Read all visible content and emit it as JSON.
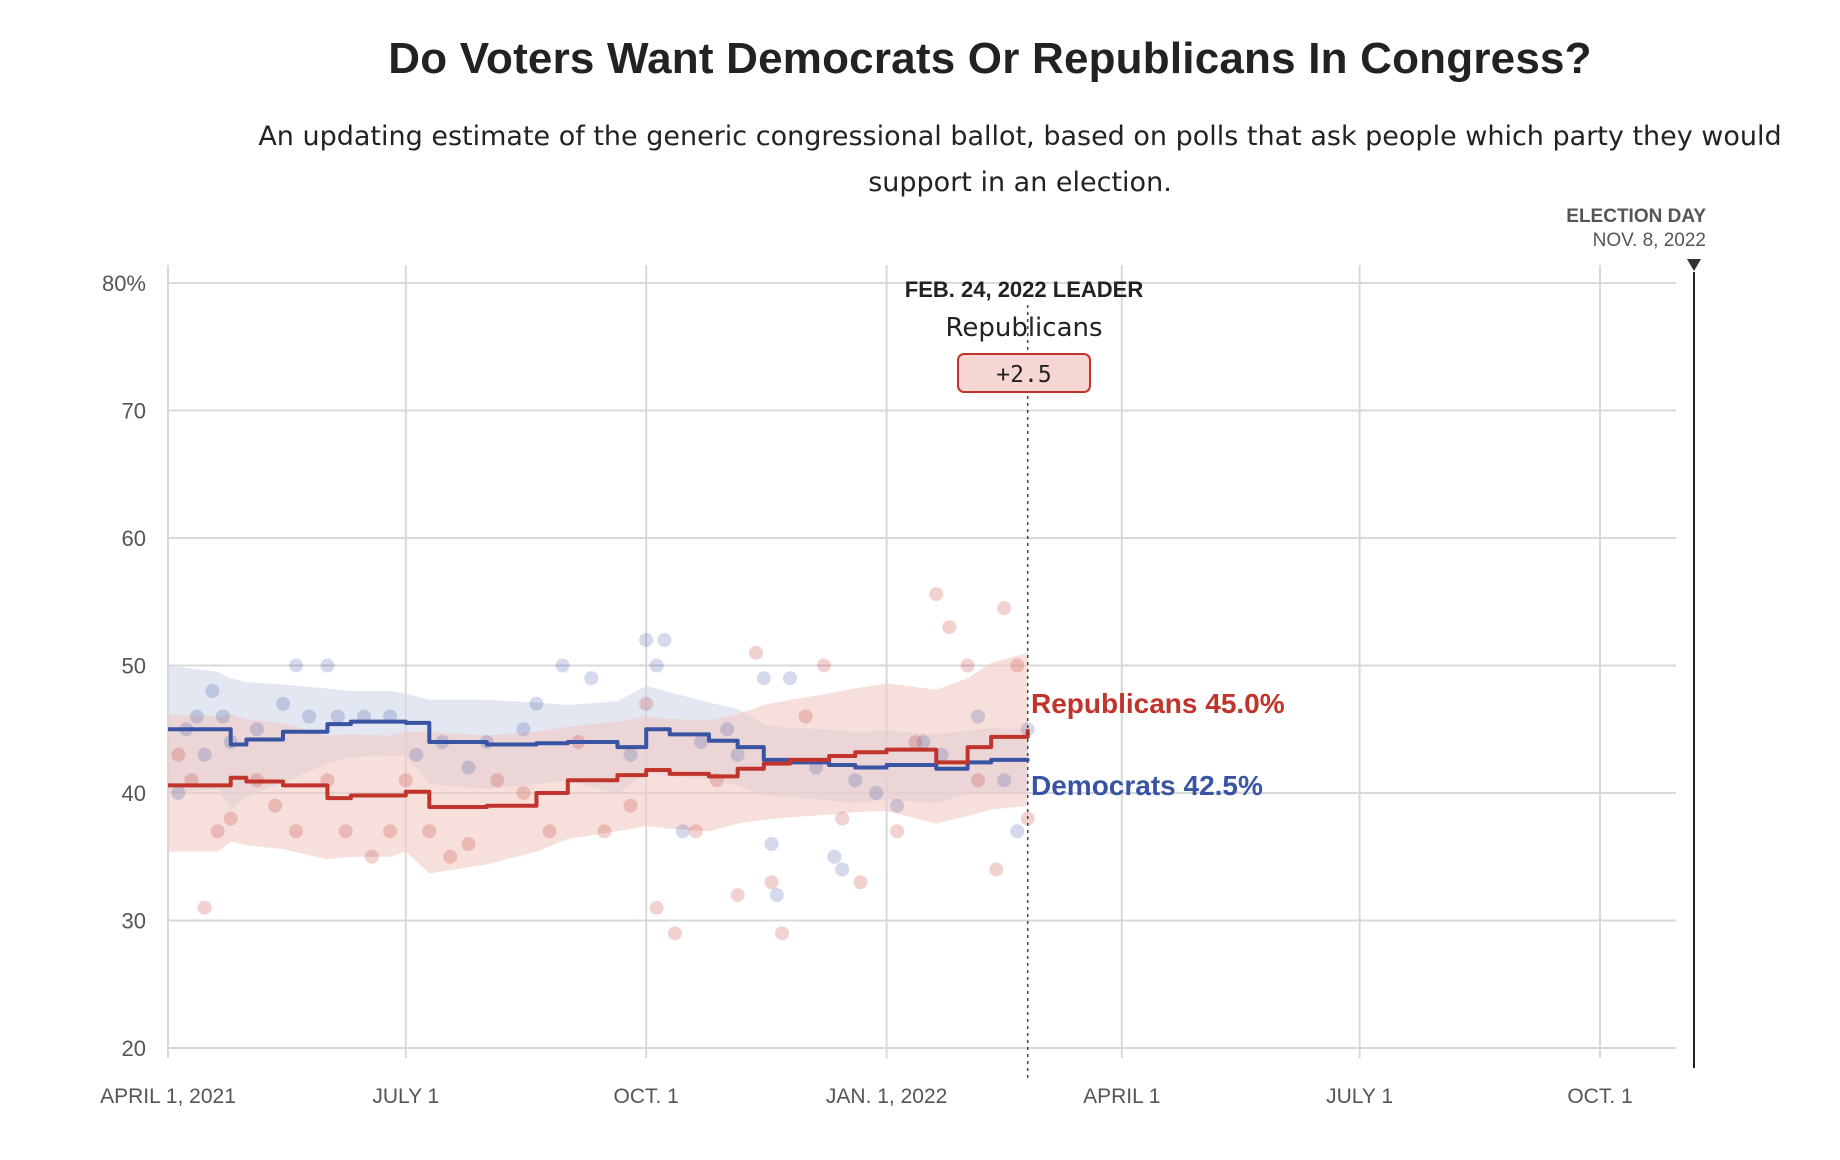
{
  "title": "Do Voters Want Democrats Or Republicans In Congress?",
  "subtitle": "An updating estimate of the generic congressional ballot, based on polls that ask people which party they would support in an election.",
  "annotation": {
    "title": "FEB. 24, 2022 LEADER",
    "party": "Republicans",
    "margin": "+2.5"
  },
  "election_day": {
    "title": "ELECTION DAY",
    "date": "NOV. 8, 2022"
  },
  "end_labels": {
    "republicans": "Republicans 45.0%",
    "democrats": "Democrats 42.5%"
  },
  "colors": {
    "republicans": "#c0342b",
    "democrats": "#3a54a4",
    "republicans_band": "#f2c9c4",
    "democrats_band": "#cfd7ea",
    "grid": "#d9d9d9"
  },
  "chart_data": {
    "type": "line",
    "x_axis": {
      "start": "2021-04-01",
      "end": "2022-11-08",
      "tick_labels": [
        "APRIL 1, 2021",
        "JULY 1",
        "OCT. 1",
        "JAN. 1, 2022",
        "APRIL 1",
        "JULY 1",
        "OCT. 1"
      ],
      "tick_dates": [
        "2021-04-01",
        "2021-07-01",
        "2021-10-01",
        "2022-01-01",
        "2022-04-01",
        "2022-07-01",
        "2022-10-01"
      ]
    },
    "y_axis": {
      "ylim": [
        20,
        80
      ],
      "ticks": [
        20,
        30,
        40,
        50,
        60,
        70,
        80
      ],
      "tick_labels": [
        "20",
        "30",
        "40",
        "50",
        "60",
        "70",
        "80%"
      ]
    },
    "grid": true,
    "series": [
      {
        "name": "Democrats",
        "key": "democrats",
        "x": [
          "2021-04-01",
          "2021-04-20",
          "2021-04-25",
          "2021-05-01",
          "2021-05-15",
          "2021-06-01",
          "2021-06-10",
          "2021-06-25",
          "2021-07-01",
          "2021-07-10",
          "2021-08-01",
          "2021-08-20",
          "2021-09-01",
          "2021-09-20",
          "2021-10-01",
          "2021-10-10",
          "2021-10-25",
          "2021-11-05",
          "2021-11-15",
          "2021-11-25",
          "2021-12-10",
          "2021-12-20",
          "2022-01-01",
          "2022-01-20",
          "2022-02-01",
          "2022-02-10",
          "2022-02-24"
        ],
        "values": [
          45.0,
          45.0,
          43.8,
          44.2,
          44.8,
          45.4,
          45.6,
          45.6,
          45.5,
          44.0,
          43.8,
          43.9,
          44.0,
          43.6,
          45.0,
          44.6,
          44.1,
          43.6,
          42.6,
          42.4,
          42.2,
          42.0,
          42.2,
          41.9,
          42.4,
          42.6,
          42.5
        ],
        "band_upper": [
          50.0,
          49.5,
          49.0,
          48.7,
          48.5,
          48.2,
          48.0,
          48.0,
          47.8,
          47.3,
          47.3,
          47.1,
          46.9,
          47.2,
          48.4,
          47.9,
          47.1,
          46.6,
          45.4,
          45.1,
          45.0,
          44.8,
          44.9,
          44.6,
          44.9,
          45.1,
          45.0
        ],
        "band_lower": [
          40.0,
          40.3,
          38.7,
          39.7,
          40.8,
          42.3,
          42.8,
          42.9,
          42.9,
          40.7,
          40.3,
          40.7,
          41.0,
          39.9,
          41.6,
          41.3,
          41.1,
          40.6,
          39.8,
          39.7,
          39.4,
          39.2,
          39.5,
          39.2,
          39.9,
          40.1,
          40.0
        ],
        "polls": [
          [
            "2021-04-05",
            40
          ],
          [
            "2021-04-08",
            45
          ],
          [
            "2021-04-12",
            46
          ],
          [
            "2021-04-15",
            43
          ],
          [
            "2021-04-18",
            48
          ],
          [
            "2021-04-22",
            46
          ],
          [
            "2021-04-25",
            44
          ],
          [
            "2021-05-05",
            45
          ],
          [
            "2021-05-15",
            47
          ],
          [
            "2021-05-20",
            50
          ],
          [
            "2021-05-25",
            46
          ],
          [
            "2021-06-01",
            50
          ],
          [
            "2021-06-05",
            46
          ],
          [
            "2021-06-15",
            46
          ],
          [
            "2021-06-25",
            46
          ],
          [
            "2021-07-05",
            43
          ],
          [
            "2021-07-15",
            44
          ],
          [
            "2021-07-25",
            42
          ],
          [
            "2021-08-01",
            44
          ],
          [
            "2021-08-15",
            45
          ],
          [
            "2021-08-20",
            47
          ],
          [
            "2021-08-30",
            50
          ],
          [
            "2021-09-10",
            49
          ],
          [
            "2021-09-25",
            43
          ],
          [
            "2021-10-01",
            52
          ],
          [
            "2021-10-05",
            50
          ],
          [
            "2021-10-08",
            52
          ],
          [
            "2021-10-15",
            37
          ],
          [
            "2021-10-22",
            44
          ],
          [
            "2021-11-01",
            45
          ],
          [
            "2021-11-05",
            43
          ],
          [
            "2021-11-15",
            49
          ],
          [
            "2021-11-18",
            36
          ],
          [
            "2021-11-20",
            32
          ],
          [
            "2021-11-25",
            49
          ],
          [
            "2021-12-05",
            42
          ],
          [
            "2021-12-12",
            35
          ],
          [
            "2021-12-15",
            34
          ],
          [
            "2021-12-20",
            41
          ],
          [
            "2021-12-28",
            40
          ],
          [
            "2022-01-05",
            39
          ],
          [
            "2022-01-15",
            44
          ],
          [
            "2022-01-22",
            43
          ],
          [
            "2022-02-05",
            46
          ],
          [
            "2022-02-15",
            41
          ],
          [
            "2022-02-20",
            37
          ],
          [
            "2022-02-24",
            45
          ]
        ]
      },
      {
        "name": "Republicans",
        "key": "republicans",
        "x": [
          "2021-04-01",
          "2021-04-20",
          "2021-04-25",
          "2021-05-01",
          "2021-05-15",
          "2021-06-01",
          "2021-06-10",
          "2021-06-25",
          "2021-07-01",
          "2021-07-10",
          "2021-08-01",
          "2021-08-20",
          "2021-09-01",
          "2021-09-20",
          "2021-10-01",
          "2021-10-10",
          "2021-10-25",
          "2021-11-05",
          "2021-11-15",
          "2021-11-25",
          "2021-12-10",
          "2021-12-20",
          "2022-01-01",
          "2022-01-20",
          "2022-02-01",
          "2022-02-10",
          "2022-02-24"
        ],
        "values": [
          40.6,
          40.6,
          41.2,
          40.9,
          40.6,
          39.6,
          39.8,
          39.8,
          40.1,
          38.9,
          39.0,
          40.0,
          41.0,
          41.4,
          41.8,
          41.5,
          41.3,
          41.9,
          42.3,
          42.6,
          42.9,
          43.2,
          43.4,
          42.4,
          43.6,
          44.4,
          45.0
        ],
        "band_upper": [
          46.2,
          46.0,
          46.2,
          45.8,
          45.5,
          44.5,
          44.6,
          44.5,
          44.8,
          44.8,
          44.5,
          44.8,
          45.2,
          45.6,
          46.0,
          45.8,
          45.7,
          46.2,
          46.9,
          47.3,
          47.8,
          48.2,
          48.6,
          48.1,
          49.0,
          50.2,
          51.0
        ],
        "band_lower": [
          35.4,
          35.4,
          36.2,
          35.9,
          35.6,
          34.8,
          35.0,
          35.0,
          35.4,
          33.7,
          34.4,
          35.4,
          36.4,
          37.0,
          37.4,
          37.2,
          37.0,
          37.6,
          37.9,
          38.1,
          38.3,
          38.5,
          38.6,
          37.6,
          38.2,
          38.7,
          39.0
        ],
        "polls": [
          [
            "2021-04-05",
            43
          ],
          [
            "2021-04-10",
            41
          ],
          [
            "2021-04-15",
            31
          ],
          [
            "2021-04-20",
            37
          ],
          [
            "2021-04-25",
            38
          ],
          [
            "2021-05-05",
            41
          ],
          [
            "2021-05-12",
            39
          ],
          [
            "2021-05-20",
            37
          ],
          [
            "2021-06-01",
            41
          ],
          [
            "2021-06-08",
            37
          ],
          [
            "2021-06-18",
            35
          ],
          [
            "2021-06-25",
            37
          ],
          [
            "2021-07-01",
            41
          ],
          [
            "2021-07-10",
            37
          ],
          [
            "2021-07-18",
            35
          ],
          [
            "2021-07-25",
            36
          ],
          [
            "2021-08-05",
            41
          ],
          [
            "2021-08-15",
            40
          ],
          [
            "2021-08-25",
            37
          ],
          [
            "2021-09-05",
            44
          ],
          [
            "2021-09-15",
            37
          ],
          [
            "2021-09-25",
            39
          ],
          [
            "2021-10-01",
            47
          ],
          [
            "2021-10-05",
            31
          ],
          [
            "2021-10-12",
            29
          ],
          [
            "2021-10-20",
            37
          ],
          [
            "2021-10-28",
            41
          ],
          [
            "2021-11-05",
            32
          ],
          [
            "2021-11-12",
            51
          ],
          [
            "2021-11-18",
            33
          ],
          [
            "2021-11-22",
            29
          ],
          [
            "2021-12-01",
            46
          ],
          [
            "2021-12-08",
            50
          ],
          [
            "2021-12-15",
            38
          ],
          [
            "2021-12-22",
            33
          ],
          [
            "2022-01-05",
            37
          ],
          [
            "2022-01-12",
            44
          ],
          [
            "2022-01-20",
            55.6
          ],
          [
            "2022-01-25",
            53
          ],
          [
            "2022-02-01",
            50
          ],
          [
            "2022-02-05",
            41
          ],
          [
            "2022-02-12",
            34
          ],
          [
            "2022-02-15",
            54.5
          ],
          [
            "2022-02-20",
            50
          ],
          [
            "2022-02-24",
            38
          ]
        ]
      }
    ]
  }
}
